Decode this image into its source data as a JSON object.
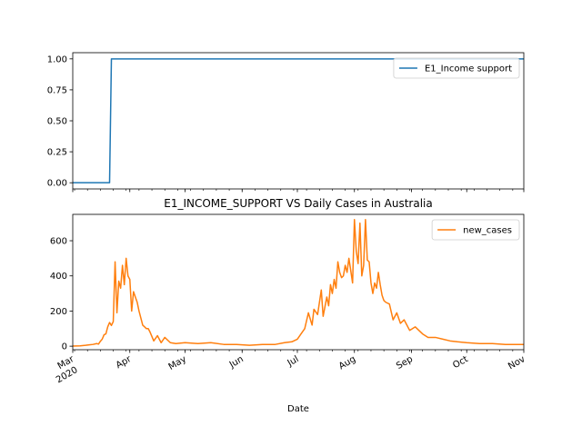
{
  "chart_data": [
    {
      "type": "line",
      "title": "",
      "xlabel": "",
      "ylabel": "",
      "ylim": [
        -0.05,
        1.05
      ],
      "yticks": [
        "0.00",
        "0.25",
        "0.50",
        "0.75",
        "1.00"
      ],
      "ytick_values": [
        0,
        0.25,
        0.5,
        0.75,
        1.0
      ],
      "legend": {
        "position": "upper-right"
      },
      "series": [
        {
          "name": "E1_Income support",
          "color": "#1f77b4",
          "x": [
            "2020-03-01",
            "2020-03-21",
            "2020-03-22",
            "2020-11-01"
          ],
          "y": [
            0,
            0,
            1,
            1
          ]
        }
      ]
    },
    {
      "type": "line",
      "title": "E1_INCOME_SUPPORT VS Daily Cases in Australia",
      "xlabel": "Date",
      "ylabel": "",
      "ylim": [
        -20,
        750
      ],
      "yticks": [
        "0",
        "200",
        "400",
        "600"
      ],
      "ytick_values": [
        0,
        200,
        400,
        600
      ],
      "legend": {
        "position": "upper-right"
      },
      "xticks": [
        {
          "date": "2020-03-01",
          "label": "Mar",
          "sublabel": "2020"
        },
        {
          "date": "2020-04-01",
          "label": "Apr"
        },
        {
          "date": "2020-05-01",
          "label": "May"
        },
        {
          "date": "2020-06-01",
          "label": "Jun"
        },
        {
          "date": "2020-07-01",
          "label": "Jul"
        },
        {
          "date": "2020-08-01",
          "label": "Aug"
        },
        {
          "date": "2020-09-01",
          "label": "Sep"
        },
        {
          "date": "2020-10-01",
          "label": "Oct"
        },
        {
          "date": "2020-11-01",
          "label": "Nov"
        }
      ],
      "series": [
        {
          "name": "new_cases",
          "color": "#ff7f0e",
          "x": [
            "2020-03-01",
            "2020-03-05",
            "2020-03-08",
            "2020-03-10",
            "2020-03-12",
            "2020-03-14",
            "2020-03-15",
            "2020-03-16",
            "2020-03-17",
            "2020-03-18",
            "2020-03-19",
            "2020-03-20",
            "2020-03-21",
            "2020-03-22",
            "2020-03-23",
            "2020-03-24",
            "2020-03-25",
            "2020-03-26",
            "2020-03-27",
            "2020-03-28",
            "2020-03-29",
            "2020-03-30",
            "2020-03-31",
            "2020-04-01",
            "2020-04-02",
            "2020-04-03",
            "2020-04-04",
            "2020-04-05",
            "2020-04-06",
            "2020-04-07",
            "2020-04-08",
            "2020-04-09",
            "2020-04-10",
            "2020-04-11",
            "2020-04-12",
            "2020-04-14",
            "2020-04-16",
            "2020-04-18",
            "2020-04-20",
            "2020-04-23",
            "2020-04-26",
            "2020-05-01",
            "2020-05-08",
            "2020-05-15",
            "2020-05-22",
            "2020-05-29",
            "2020-06-05",
            "2020-06-12",
            "2020-06-19",
            "2020-06-24",
            "2020-06-28",
            "2020-07-01",
            "2020-07-03",
            "2020-07-05",
            "2020-07-07",
            "2020-07-09",
            "2020-07-10",
            "2020-07-12",
            "2020-07-14",
            "2020-07-15",
            "2020-07-17",
            "2020-07-18",
            "2020-07-19",
            "2020-07-20",
            "2020-07-21",
            "2020-07-22",
            "2020-07-23",
            "2020-07-24",
            "2020-07-25",
            "2020-07-26",
            "2020-07-27",
            "2020-07-28",
            "2020-07-29",
            "2020-07-30",
            "2020-07-31",
            "2020-08-01",
            "2020-08-02",
            "2020-08-03",
            "2020-08-04",
            "2020-08-05",
            "2020-08-06",
            "2020-08-07",
            "2020-08-08",
            "2020-08-09",
            "2020-08-10",
            "2020-08-11",
            "2020-08-12",
            "2020-08-13",
            "2020-08-14",
            "2020-08-15",
            "2020-08-16",
            "2020-08-17",
            "2020-08-18",
            "2020-08-20",
            "2020-08-22",
            "2020-08-24",
            "2020-08-26",
            "2020-08-28",
            "2020-08-31",
            "2020-09-03",
            "2020-09-07",
            "2020-09-10",
            "2020-09-14",
            "2020-09-18",
            "2020-09-22",
            "2020-09-26",
            "2020-10-01",
            "2020-10-08",
            "2020-10-15",
            "2020-10-22",
            "2020-10-29",
            "2020-11-01"
          ],
          "y": [
            1,
            2,
            5,
            8,
            10,
            15,
            12,
            28,
            40,
            65,
            70,
            110,
            135,
            118,
            140,
            480,
            190,
            370,
            330,
            460,
            350,
            500,
            400,
            380,
            200,
            310,
            280,
            250,
            200,
            160,
            120,
            110,
            100,
            100,
            80,
            30,
            60,
            20,
            50,
            20,
            15,
            20,
            15,
            20,
            10,
            10,
            5,
            10,
            10,
            20,
            25,
            40,
            70,
            100,
            190,
            120,
            210,
            180,
            320,
            170,
            280,
            230,
            350,
            300,
            380,
            330,
            480,
            420,
            390,
            400,
            460,
            420,
            500,
            430,
            360,
            720,
            540,
            470,
            700,
            400,
            460,
            720,
            490,
            480,
            360,
            300,
            360,
            330,
            420,
            350,
            290,
            260,
            250,
            240,
            150,
            190,
            130,
            150,
            90,
            110,
            70,
            50,
            50,
            40,
            30,
            25,
            20,
            15,
            15,
            10,
            10,
            10
          ]
        }
      ]
    }
  ]
}
